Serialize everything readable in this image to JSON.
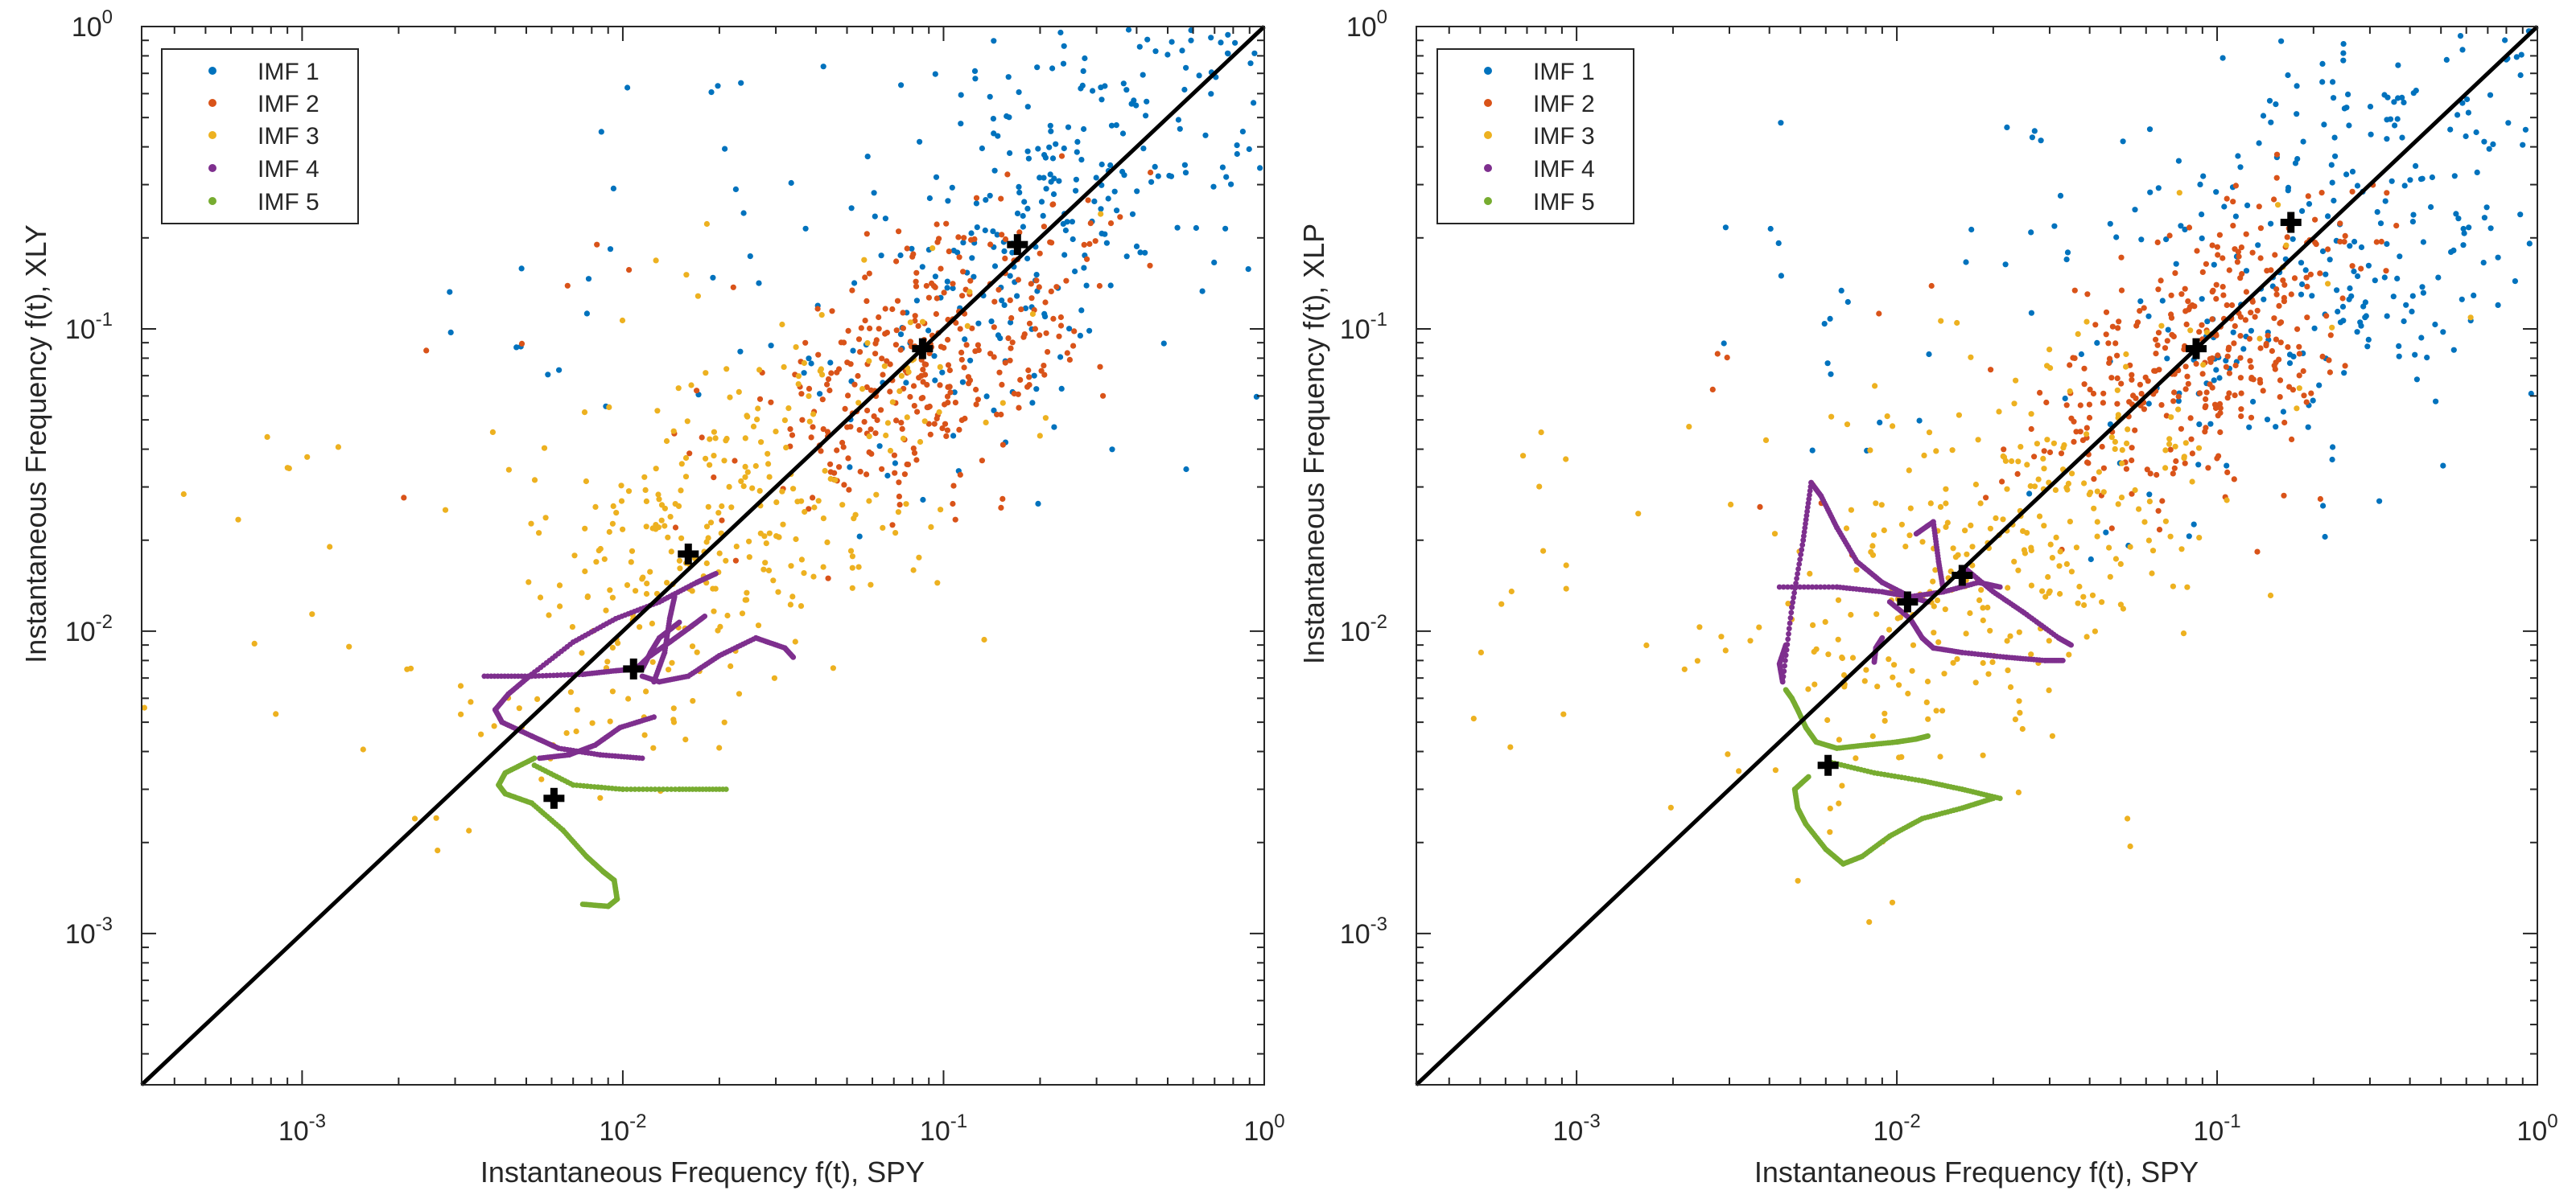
{
  "chart_data": [
    {
      "type": "scatter",
      "xscale": "log",
      "yscale": "log",
      "xlim": [
        0.000316,
        1
      ],
      "ylim": [
        0.000316,
        1
      ],
      "xlabel": "Instantaneous Frequency f(t), SPY",
      "ylabel": "Instantaneous Frequency f(t), XLY",
      "x_ticks": [
        {
          "base": "10",
          "exp": "-3"
        },
        {
          "base": "10",
          "exp": "-2"
        },
        {
          "base": "10",
          "exp": "-1"
        },
        {
          "base": "10",
          "exp": "0"
        }
      ],
      "y_ticks": [
        {
          "base": "10",
          "exp": "-3"
        },
        {
          "base": "10",
          "exp": "-2"
        },
        {
          "base": "10",
          "exp": "-1"
        },
        {
          "base": "10",
          "exp": "0"
        }
      ],
      "legend_position": "top-left",
      "reference_line": {
        "description": "identity line y = x",
        "color": "#000000"
      },
      "series": [
        {
          "name": "IMF 1",
          "color": "#0072BD",
          "center": [
            0.28,
            0.29
          ],
          "spread": 0.42,
          "count": 320,
          "tail": 45
        },
        {
          "name": "IMF 2",
          "color": "#D95319",
          "center": [
            0.095,
            0.085
          ],
          "spread": 0.26,
          "count": 340,
          "tail": 12
        },
        {
          "name": "IMF 3",
          "color": "#EDB120",
          "center": [
            0.022,
            0.022
          ],
          "spread": 0.38,
          "count": 320,
          "tail": 30
        },
        {
          "name": "IMF 4",
          "color": "#7E2F8E",
          "paths": [
            [
              [
                0.0037,
                0.0071
              ],
              [
                0.0052,
                0.0071
              ],
              [
                0.0075,
                0.0072
              ],
              [
                0.0095,
                0.0074
              ],
              [
                0.011,
                0.0075
              ],
              [
                0.012,
                0.0082
              ],
              [
                0.014,
                0.0092
              ],
              [
                0.016,
                0.0102
              ],
              [
                0.018,
                0.0112
              ]
            ],
            [
              [
                0.0115,
                0.0071
              ],
              [
                0.013,
                0.0068
              ],
              [
                0.016,
                0.0071
              ],
              [
                0.02,
                0.0083
              ],
              [
                0.026,
                0.0095
              ],
              [
                0.032,
                0.0088
              ],
              [
                0.034,
                0.0082
              ]
            ],
            [
              [
                0.0195,
                0.0155
              ],
              [
                0.017,
                0.0145
              ],
              [
                0.013,
                0.0125
              ],
              [
                0.0095,
                0.011
              ],
              [
                0.007,
                0.0092
              ],
              [
                0.0052,
                0.0072
              ],
              [
                0.0044,
                0.0062
              ],
              [
                0.004,
                0.0055
              ],
              [
                0.0042,
                0.005
              ],
              [
                0.0052,
                0.0045
              ],
              [
                0.0063,
                0.0041
              ],
              [
                0.0085,
                0.0039
              ],
              [
                0.0115,
                0.0038
              ]
            ],
            [
              [
                0.0125,
                0.0052
              ],
              [
                0.0098,
                0.0048
              ],
              [
                0.0082,
                0.0042
              ],
              [
                0.0068,
                0.0039
              ],
              [
                0.0055,
                0.0038
              ]
            ],
            [
              [
                0.0115,
                0.0075
              ],
              [
                0.0122,
                0.0085
              ],
              [
                0.013,
                0.0095
              ],
              [
                0.015,
                0.0107
              ]
            ],
            [
              [
                0.0125,
                0.0068
              ],
              [
                0.0135,
                0.0085
              ],
              [
                0.014,
                0.011
              ],
              [
                0.0145,
                0.013
              ]
            ]
          ]
        },
        {
          "name": "IMF 5",
          "color": "#77AC30",
          "paths": [
            [
              [
                0.0053,
                0.0036
              ],
              [
                0.007,
                0.0031
              ],
              [
                0.01,
                0.003
              ],
              [
                0.015,
                0.003
              ],
              [
                0.021,
                0.003
              ]
            ],
            [
              [
                0.0053,
                0.0038
              ],
              [
                0.0043,
                0.0034
              ],
              [
                0.0041,
                0.0031
              ],
              [
                0.0043,
                0.0029
              ],
              [
                0.0052,
                0.0027
              ],
              [
                0.0065,
                0.0022
              ],
              [
                0.0077,
                0.0018
              ],
              [
                0.0087,
                0.0016
              ],
              [
                0.0094,
                0.0015
              ],
              [
                0.0096,
                0.0013
              ],
              [
                0.009,
                0.00123
              ],
              [
                0.0075,
                0.00125
              ]
            ]
          ]
        }
      ],
      "markers": [
        [
          0.0061,
          0.0028
        ],
        [
          0.0108,
          0.0075
        ],
        [
          0.016,
          0.018
        ],
        [
          0.086,
          0.086
        ],
        [
          0.17,
          0.19
        ]
      ]
    },
    {
      "type": "scatter",
      "xscale": "log",
      "yscale": "log",
      "xlim": [
        0.000316,
        1
      ],
      "ylim": [
        0.000316,
        1
      ],
      "xlabel": "Instantaneous Frequency f(t), SPY",
      "ylabel": "Instantaneous Frequency f(t), XLP",
      "x_ticks": [
        {
          "base": "10",
          "exp": "-3"
        },
        {
          "base": "10",
          "exp": "-2"
        },
        {
          "base": "10",
          "exp": "-1"
        },
        {
          "base": "10",
          "exp": "0"
        }
      ],
      "y_ticks": [
        {
          "base": "10",
          "exp": "-3"
        },
        {
          "base": "10",
          "exp": "-2"
        },
        {
          "base": "10",
          "exp": "-1"
        },
        {
          "base": "10",
          "exp": "0"
        }
      ],
      "legend_position": "top-left",
      "reference_line": {
        "description": "identity line y = x",
        "color": "#000000"
      },
      "series": [
        {
          "name": "IMF 1",
          "color": "#0072BD",
          "center": [
            0.28,
            0.2
          ],
          "spread": 0.48,
          "count": 320,
          "tail": 45
        },
        {
          "name": "IMF 2",
          "color": "#D95319",
          "center": [
            0.095,
            0.085
          ],
          "spread": 0.28,
          "count": 340,
          "tail": 12
        },
        {
          "name": "IMF 3",
          "color": "#EDB120",
          "center": [
            0.022,
            0.018
          ],
          "spread": 0.4,
          "count": 320,
          "tail": 35
        },
        {
          "name": "IMF 4",
          "color": "#7E2F8E",
          "paths": [
            [
              [
                0.0043,
                0.014
              ],
              [
                0.0065,
                0.014
              ],
              [
                0.009,
                0.0135
              ],
              [
                0.011,
                0.013
              ],
              [
                0.0125,
                0.0125
              ]
            ],
            [
              [
                0.0045,
                0.009
              ],
              [
                0.0043,
                0.0078
              ],
              [
                0.0044,
                0.0068
              ],
              [
                0.0047,
                0.012
              ],
              [
                0.0051,
                0.02
              ],
              [
                0.0054,
                0.031
              ],
              [
                0.0058,
                0.028
              ],
              [
                0.0065,
                0.022
              ],
              [
                0.0075,
                0.017
              ],
              [
                0.009,
                0.0145
              ],
              [
                0.011,
                0.013
              ],
              [
                0.014,
                0.0135
              ],
              [
                0.018,
                0.0145
              ],
              [
                0.021,
                0.014
              ]
            ],
            [
              [
                0.0095,
                0.0125
              ],
              [
                0.011,
                0.011
              ],
              [
                0.012,
                0.0095
              ],
              [
                0.013,
                0.0088
              ],
              [
                0.016,
                0.0085
              ],
              [
                0.022,
                0.0082
              ],
              [
                0.029,
                0.008
              ],
              [
                0.033,
                0.008
              ]
            ],
            [
              [
                0.0115,
                0.021
              ],
              [
                0.013,
                0.023
              ],
              [
                0.0135,
                0.017
              ],
              [
                0.014,
                0.0135
              ]
            ],
            [
              [
                0.0165,
                0.016
              ],
              [
                0.02,
                0.0135
              ],
              [
                0.025,
                0.0115
              ],
              [
                0.032,
                0.0095
              ],
              [
                0.035,
                0.009
              ]
            ],
            [
              [
                0.0085,
                0.0079
              ],
              [
                0.0086,
                0.0088
              ],
              [
                0.009,
                0.0095
              ]
            ]
          ]
        },
        {
          "name": "IMF 5",
          "color": "#77AC30",
          "paths": [
            [
              [
                0.0061,
                0.0037
              ],
              [
                0.0085,
                0.0034
              ],
              [
                0.012,
                0.0032
              ],
              [
                0.016,
                0.003
              ],
              [
                0.021,
                0.0028
              ]
            ],
            [
              [
                0.0053,
                0.0033
              ],
              [
                0.0048,
                0.003
              ],
              [
                0.0049,
                0.0026
              ],
              [
                0.0052,
                0.0023
              ],
              [
                0.006,
                0.0019
              ],
              [
                0.0068,
                0.0017
              ],
              [
                0.0078,
                0.0018
              ],
              [
                0.0095,
                0.0021
              ],
              [
                0.012,
                0.0024
              ],
              [
                0.016,
                0.0026
              ],
              [
                0.02,
                0.0028
              ]
            ],
            [
              [
                0.0045,
                0.0064
              ],
              [
                0.0047,
                0.006
              ],
              [
                0.0049,
                0.0055
              ],
              [
                0.0052,
                0.0048
              ],
              [
                0.0056,
                0.0043
              ],
              [
                0.0065,
                0.0041
              ],
              [
                0.008,
                0.0042
              ],
              [
                0.01,
                0.0043
              ],
              [
                0.0115,
                0.0044
              ],
              [
                0.0125,
                0.0045
              ]
            ]
          ]
        }
      ],
      "markers": [
        [
          0.0061,
          0.0036
        ],
        [
          0.0108,
          0.0125
        ],
        [
          0.016,
          0.0153
        ],
        [
          0.086,
          0.086
        ],
        [
          0.17,
          0.225
        ]
      ]
    }
  ]
}
